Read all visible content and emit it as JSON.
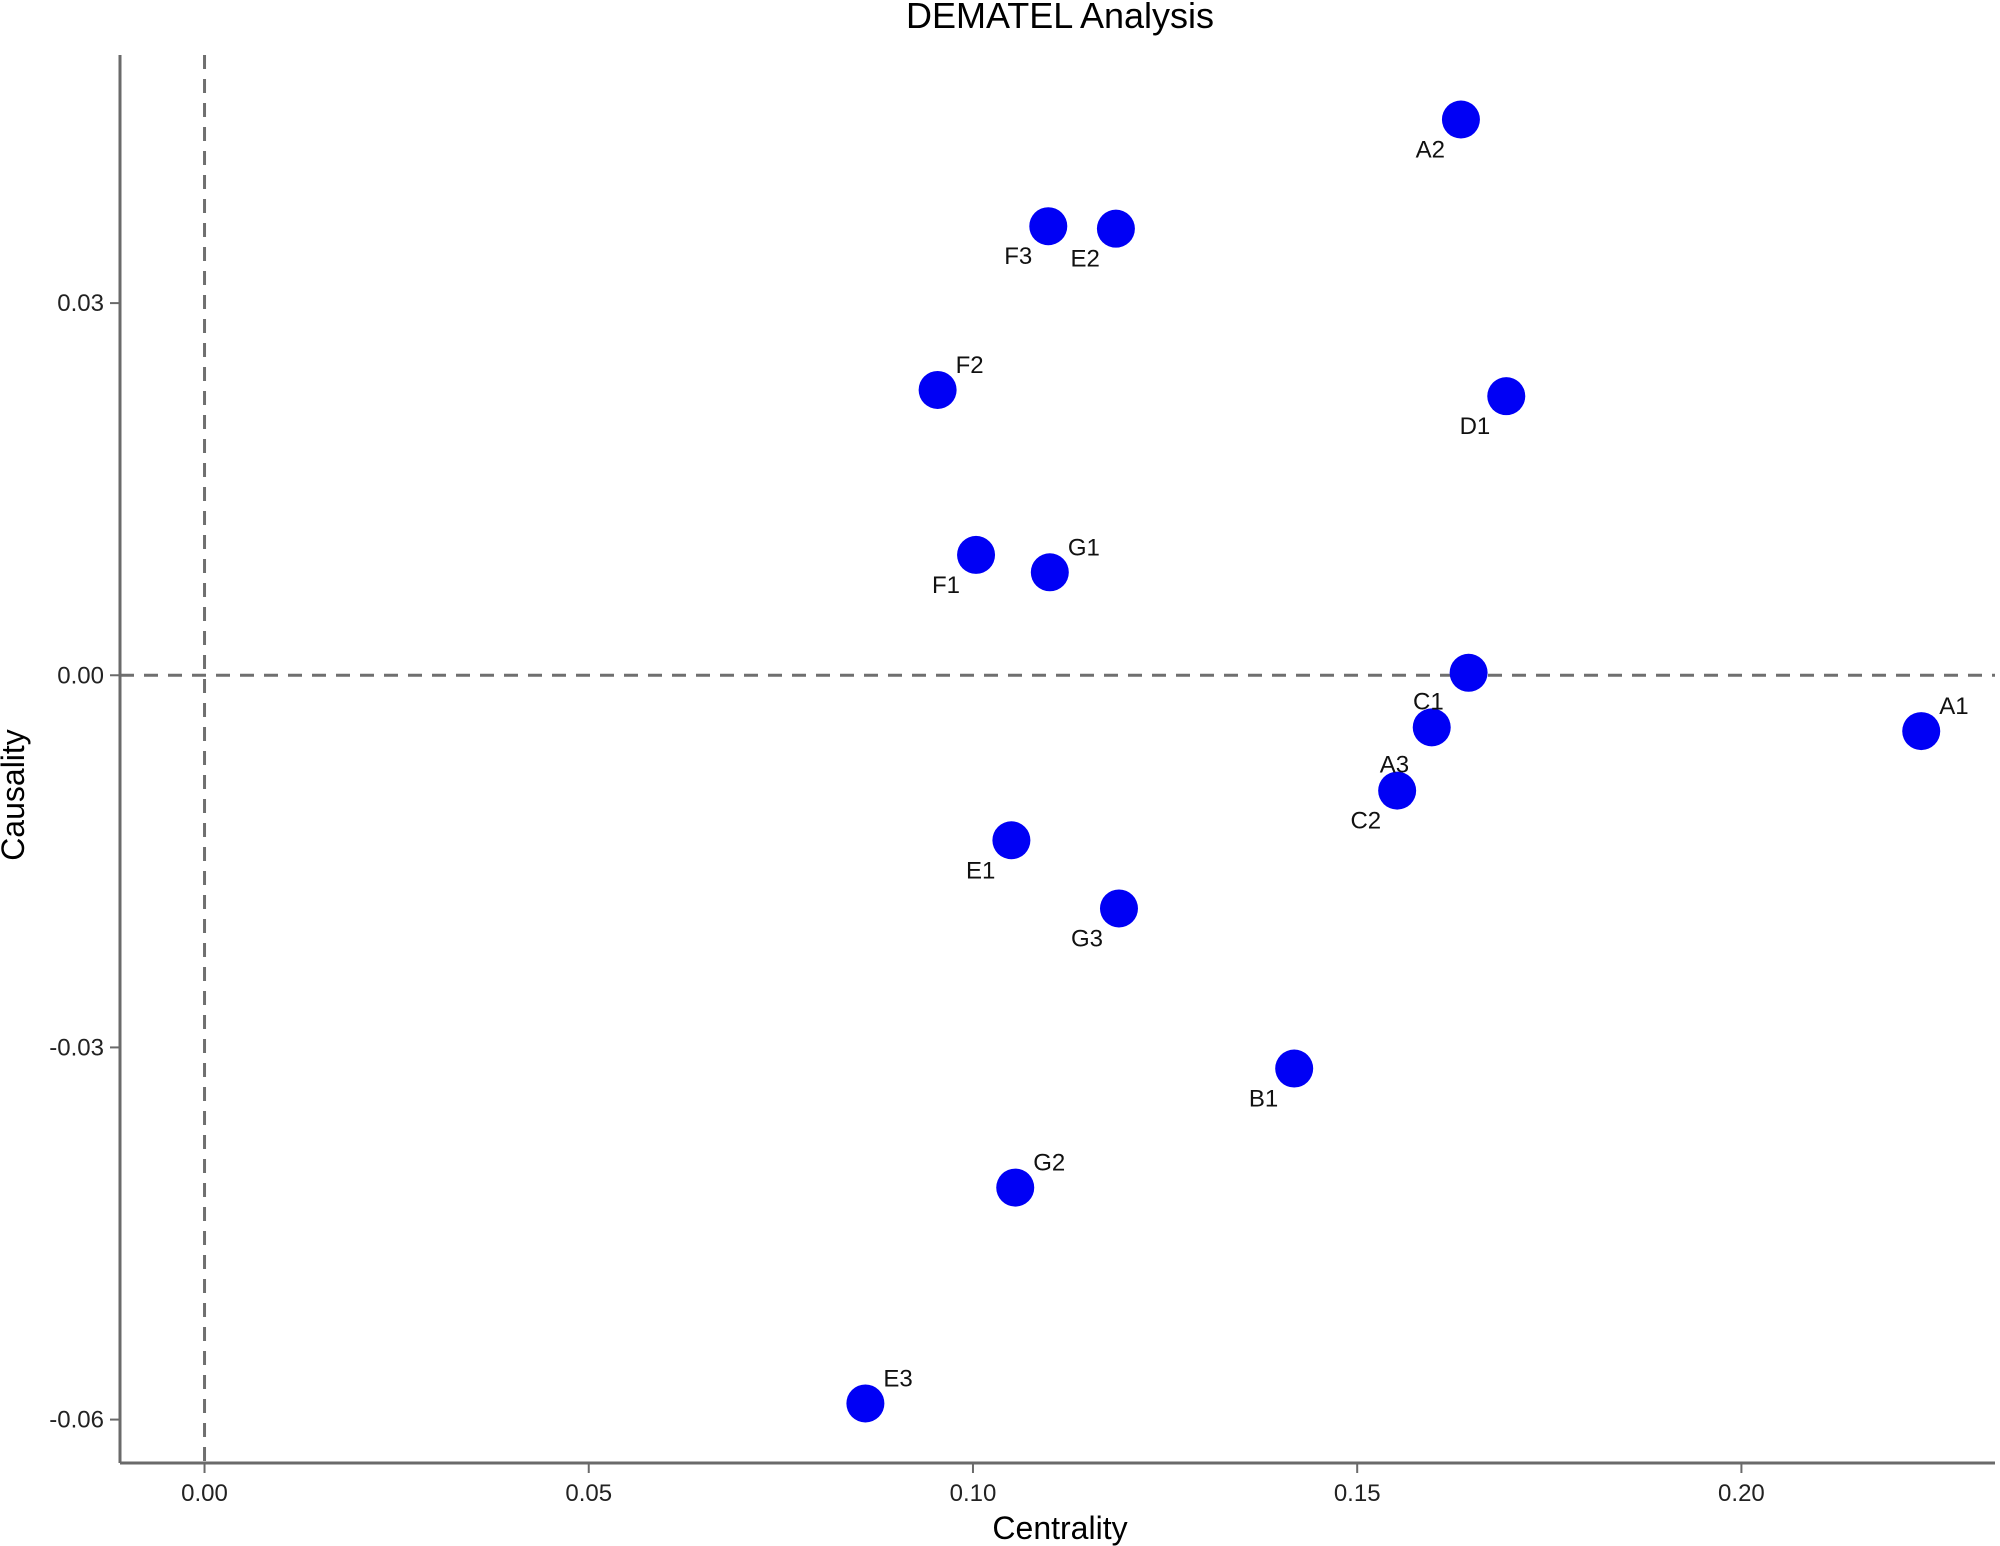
{
  "chart_data": {
    "type": "scatter",
    "title": "DEMATEL Analysis",
    "xlabel": "Centrality",
    "ylabel": "Causality",
    "xlim": [
      -0.011,
      0.233
    ],
    "ylim": [
      -0.0635,
      0.05
    ],
    "xticks": [
      0.0,
      0.05,
      0.1,
      0.15,
      0.2
    ],
    "xtick_labels": [
      "0.00",
      "0.05",
      "0.10",
      "0.15",
      "0.20"
    ],
    "yticks": [
      0.03,
      0.0,
      -0.03,
      -0.06
    ],
    "ytick_labels": [
      "0.03",
      "0.00",
      "-0.03",
      "-0.06"
    ],
    "reference_lines": {
      "x": 0,
      "y": 0,
      "style": "dashed"
    },
    "grid": false,
    "legend": "none",
    "point_color": "#0000f5",
    "points": [
      {
        "label": "A2",
        "x": 0.1635,
        "y": 0.0448,
        "label_pos": "bottom-left"
      },
      {
        "label": "F3",
        "x": 0.1098,
        "y": 0.0362,
        "label_pos": "bottom-left"
      },
      {
        "label": "E2",
        "x": 0.1186,
        "y": 0.036,
        "label_pos": "bottom-left"
      },
      {
        "label": "F2",
        "x": 0.0954,
        "y": 0.023,
        "label_pos": "top-right"
      },
      {
        "label": "D1",
        "x": 0.1694,
        "y": 0.0225,
        "label_pos": "bottom-left"
      },
      {
        "label": "F1",
        "x": 0.1004,
        "y": 0.0097,
        "label_pos": "bottom-left"
      },
      {
        "label": "G1",
        "x": 0.11,
        "y": 0.0083,
        "label_pos": "top-right"
      },
      {
        "label": "",
        "x": 0.1645,
        "y": 0.0002,
        "label_pos": "none"
      },
      {
        "label": "C1",
        "x": 0.1597,
        "y": -0.0042,
        "label_pos": "top-left"
      },
      {
        "label": "A1",
        "x": 0.2234,
        "y": -0.0045,
        "label_pos": "top-right"
      },
      {
        "label": "A3",
        "x": 0.1552,
        "y": -0.0093,
        "label_pos": "top-left"
      },
      {
        "label": "C2",
        "x": 0.1552,
        "y": -0.0093,
        "label_pos": "bottom-left"
      },
      {
        "label": "E1",
        "x": 0.105,
        "y": -0.0133,
        "label_pos": "bottom-left"
      },
      {
        "label": "G3",
        "x": 0.119,
        "y": -0.0188,
        "label_pos": "bottom-left"
      },
      {
        "label": "B1",
        "x": 0.1418,
        "y": -0.0317,
        "label_pos": "bottom-left"
      },
      {
        "label": "G2",
        "x": 0.1055,
        "y": -0.0413,
        "label_pos": "top-right"
      },
      {
        "label": "E3",
        "x": 0.086,
        "y": -0.0587,
        "label_pos": "top-right"
      }
    ]
  }
}
